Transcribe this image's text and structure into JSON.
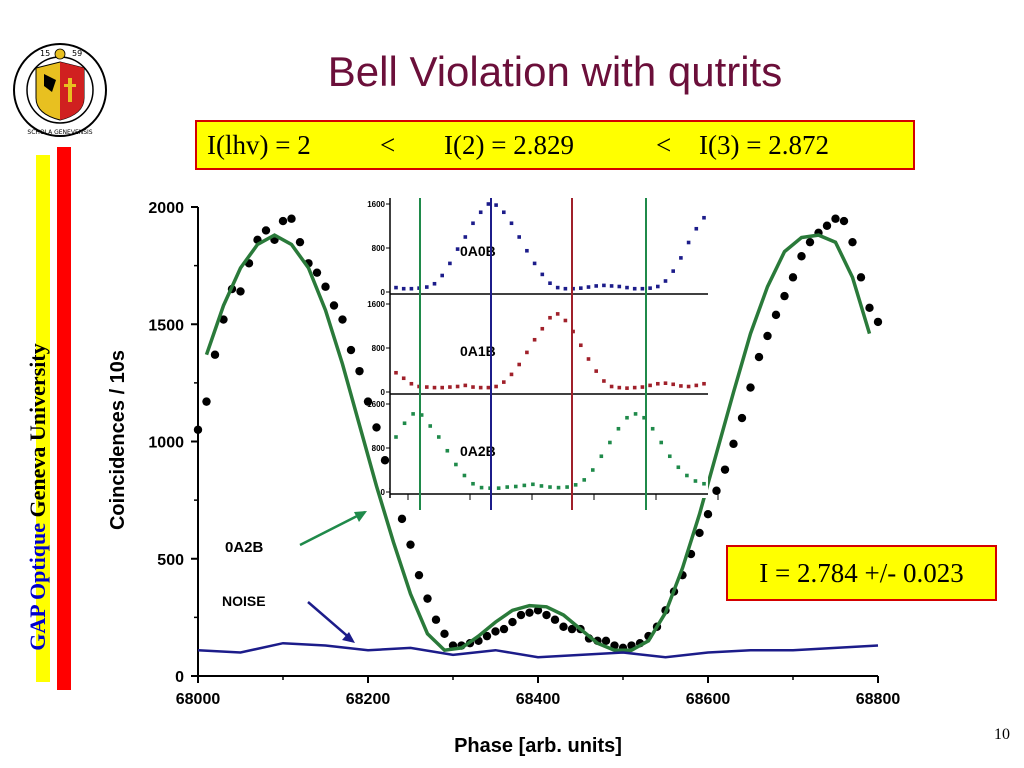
{
  "slide": {
    "title": "Bell Violation with qutrits",
    "inequality": {
      "lhv": "I(lhv) = 2",
      "lt1": "<",
      "i2": "I(2) = 2.829",
      "lt2": "<",
      "i3": "I(3) = 2.872"
    },
    "result": "I = 2.784 +/- 0.023",
    "sidebar_org": "GAP Optique",
    "sidebar_uni": "Geneva University",
    "page_number": "10",
    "logo": {
      "text_top": "15",
      "text_top2": "59",
      "ring_text": "SCHOLA GENEVENSIS"
    },
    "colors": {
      "title": "#6b0f3a",
      "box_fill": "#ffff00",
      "box_border": "#d40000",
      "fit": "#2a7a3a",
      "noise": "#1c1c8a",
      "sidebar_blue": "#0000cc"
    }
  },
  "chart_data": [
    {
      "type": "scatter",
      "xlabel": "Phase  [arb. units]",
      "ylabel": "Coincidences / 10s",
      "xlim": [
        68000,
        68800
      ],
      "ylim": [
        0,
        2000
      ],
      "xticks": [
        "68000",
        "68200",
        "68400",
        "68600",
        "68800"
      ],
      "yticks": [
        "0",
        "500",
        "1000",
        "1500",
        "2000"
      ],
      "annotations": [
        "0A2B",
        "NOISE"
      ],
      "series": [
        {
          "name": "0A2B",
          "x": [
            68000,
            68010,
            68020,
            68030,
            68040,
            68050,
            68060,
            68070,
            68080,
            68090,
            68100,
            68110,
            68120,
            68130,
            68140,
            68150,
            68160,
            68170,
            68180,
            68190,
            68200,
            68210,
            68220,
            68230,
            68240,
            68250,
            68260,
            68270,
            68280,
            68290,
            68300,
            68310,
            68320,
            68330,
            68340,
            68350,
            68360,
            68370,
            68380,
            68390,
            68400,
            68410,
            68420,
            68430,
            68440,
            68450,
            68460,
            68470,
            68480,
            68490,
            68500,
            68510,
            68520,
            68530,
            68540,
            68550,
            68560,
            68570,
            68580,
            68590,
            68600,
            68610,
            68620,
            68630,
            68640,
            68650,
            68660,
            68670,
            68680,
            68690,
            68700,
            68710,
            68720,
            68730,
            68740,
            68750,
            68760,
            68770,
            68780,
            68790,
            68800
          ],
          "y": [
            1050,
            1170,
            1370,
            1520,
            1650,
            1640,
            1760,
            1860,
            1900,
            1860,
            1940,
            1950,
            1850,
            1760,
            1720,
            1660,
            1580,
            1520,
            1390,
            1300,
            1170,
            1060,
            920,
            800,
            670,
            560,
            430,
            330,
            240,
            180,
            130,
            130,
            140,
            150,
            170,
            190,
            200,
            230,
            260,
            270,
            280,
            260,
            240,
            210,
            200,
            200,
            160,
            150,
            150,
            130,
            120,
            130,
            140,
            170,
            210,
            280,
            360,
            430,
            520,
            610,
            690,
            790,
            880,
            990,
            1100,
            1230,
            1360,
            1450,
            1540,
            1620,
            1700,
            1790,
            1850,
            1890,
            1920,
            1950,
            1940,
            1850,
            1700,
            1570,
            1510
          ]
        },
        {
          "name": "fit",
          "x": [
            68010,
            68030,
            68050,
            68070,
            68090,
            68110,
            68130,
            68150,
            68170,
            68190,
            68210,
            68230,
            68250,
            68270,
            68290,
            68310,
            68330,
            68350,
            68370,
            68390,
            68410,
            68430,
            68450,
            68470,
            68490,
            68510,
            68530,
            68550,
            68570,
            68590,
            68610,
            68630,
            68650,
            68670,
            68690,
            68710,
            68730,
            68750,
            68770,
            68790
          ],
          "y": [
            1370,
            1580,
            1740,
            1840,
            1880,
            1840,
            1740,
            1560,
            1330,
            1070,
            810,
            570,
            350,
            180,
            110,
            120,
            170,
            230,
            280,
            300,
            295,
            260,
            200,
            140,
            110,
            110,
            150,
            270,
            460,
            690,
            950,
            1210,
            1460,
            1660,
            1810,
            1870,
            1880,
            1850,
            1700,
            1460
          ]
        },
        {
          "name": "NOISE",
          "x": [
            68000,
            68050,
            68100,
            68150,
            68200,
            68250,
            68300,
            68350,
            68400,
            68450,
            68500,
            68550,
            68600,
            68650,
            68700,
            68750,
            68800
          ],
          "y": [
            110,
            100,
            140,
            130,
            110,
            120,
            90,
            110,
            80,
            90,
            100,
            80,
            100,
            110,
            110,
            120,
            130
          ]
        }
      ]
    },
    {
      "type": "scatter",
      "panel": "inset",
      "yticks": [
        "0",
        "800",
        "1600"
      ],
      "panels": [
        {
          "label": "0A0B",
          "color": "#1c1c8a",
          "y": [
            80,
            60,
            60,
            70,
            90,
            150,
            300,
            520,
            780,
            1000,
            1250,
            1450,
            1600,
            1580,
            1450,
            1250,
            1000,
            750,
            520,
            320,
            160,
            80,
            60,
            60,
            70,
            90,
            110,
            120,
            110,
            100,
            80,
            60,
            60,
            70,
            100,
            200,
            380,
            620,
            900,
            1150,
            1350
          ]
        },
        {
          "label": "0A1B",
          "color": "#a0202a",
          "y": [
            350,
            250,
            150,
            100,
            90,
            80,
            80,
            90,
            100,
            120,
            90,
            80,
            80,
            100,
            180,
            320,
            500,
            720,
            950,
            1150,
            1350,
            1420,
            1300,
            1100,
            850,
            600,
            380,
            200,
            100,
            80,
            70,
            80,
            90,
            120,
            150,
            160,
            140,
            110,
            100,
            120,
            150
          ]
        },
        {
          "label": "0A2B",
          "color": "#1f8a4a",
          "y": [
            1000,
            1250,
            1420,
            1400,
            1200,
            1000,
            750,
            500,
            300,
            150,
            80,
            70,
            70,
            90,
            100,
            120,
            140,
            110,
            90,
            80,
            90,
            130,
            220,
            400,
            650,
            900,
            1150,
            1350,
            1420,
            1350,
            1150,
            900,
            650,
            450,
            300,
            200,
            150
          ]
        }
      ]
    }
  ]
}
